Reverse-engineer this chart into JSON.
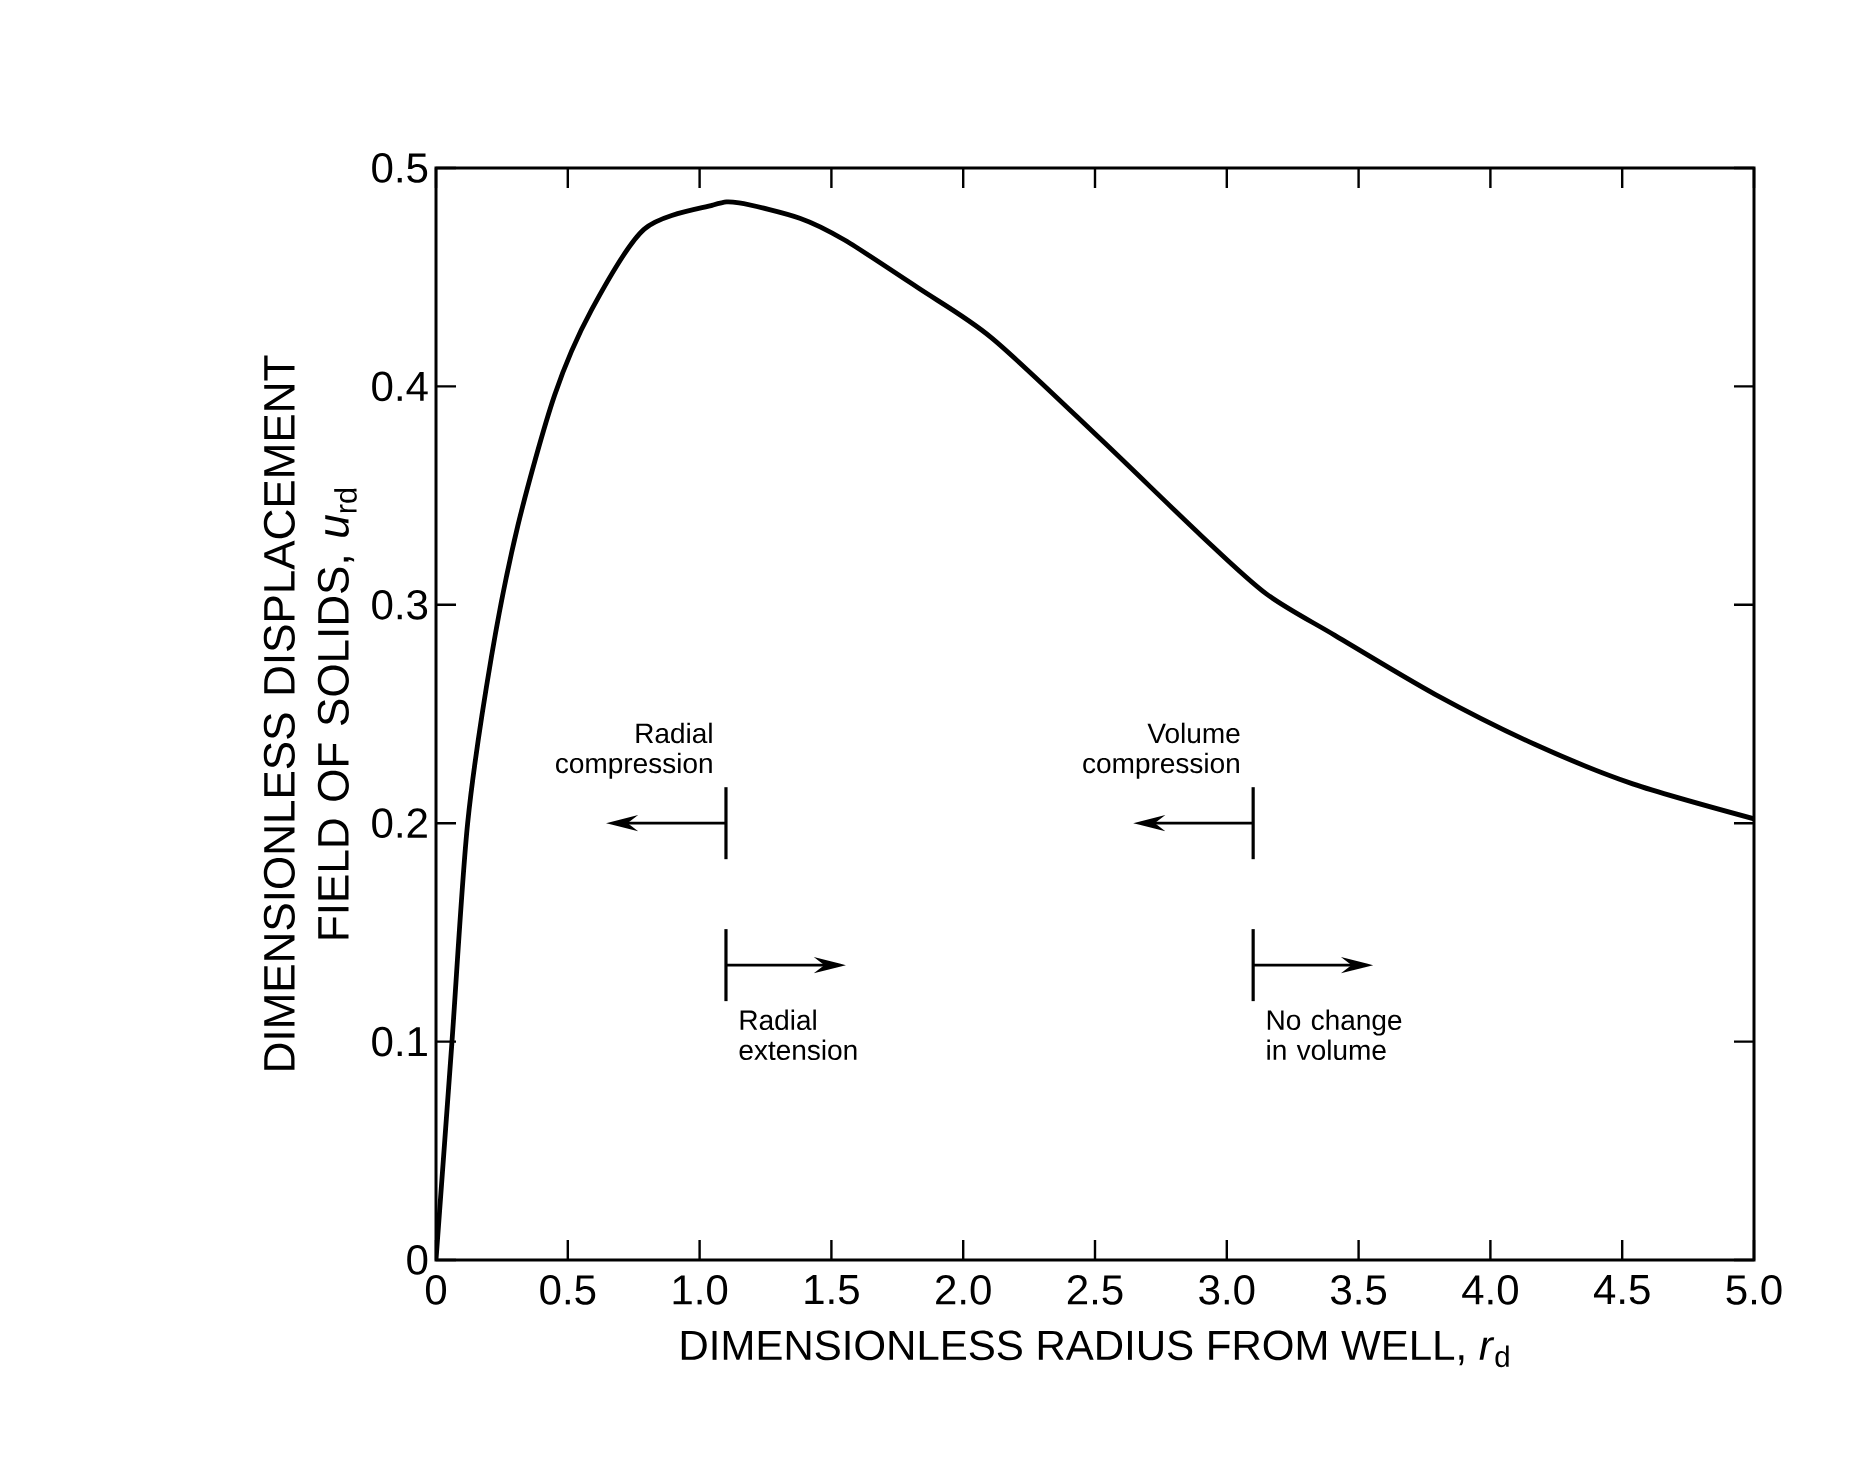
{
  "chart_data": {
    "type": "line",
    "xlabel": "DIMENSIONLESS RADIUS FROM WELL, *r*$_{d}$",
    "ylabel": "DIMENSIONLESS DISPLACEMENT FIELD OF SOLIDS, *u*$_{rd}$",
    "x": [
      0,
      0.06,
      0.12,
      0.21,
      0.31,
      0.45,
      0.59,
      0.79,
      1.05,
      1.15,
      1.38,
      1.55,
      1.83,
      2.11,
      2.52,
      2.9,
      3.15,
      3.41,
      3.79,
      4.17,
      4.54,
      5.0
    ],
    "series": [
      {
        "color": "#000000",
        "values": [
          0,
          0.099,
          0.2,
          0.276,
          0.336,
          0.396,
          0.435,
          0.472,
          0.483,
          0.484,
          0.477,
          0.467,
          0.445,
          0.422,
          0.376,
          0.332,
          0.305,
          0.286,
          0.259,
          0.236,
          0.218,
          0.202
        ]
      }
    ],
    "xlim": [
      0,
      5
    ],
    "ylim": [
      0,
      0.5
    ],
    "xticks": [
      0,
      0.5,
      {
        "value": 1,
        "label": "1.0"
      },
      1.5,
      {
        "value": 2,
        "label": "2.0"
      },
      2.5,
      {
        "value": 3,
        "label": "3.0"
      },
      3.5,
      {
        "value": 4,
        "label": "4.0"
      },
      4.5,
      {
        "value": 5,
        "label": "5.0"
      }
    ],
    "yticks": [
      0,
      0.1,
      0.2,
      0.3,
      0.4,
      0.5
    ],
    "marker": "none",
    "line_style": "solid",
    "annotations": [
      "Radial compression",
      "Radial extension",
      "Volume compression",
      "No change in volume"
    ]
  }
}
